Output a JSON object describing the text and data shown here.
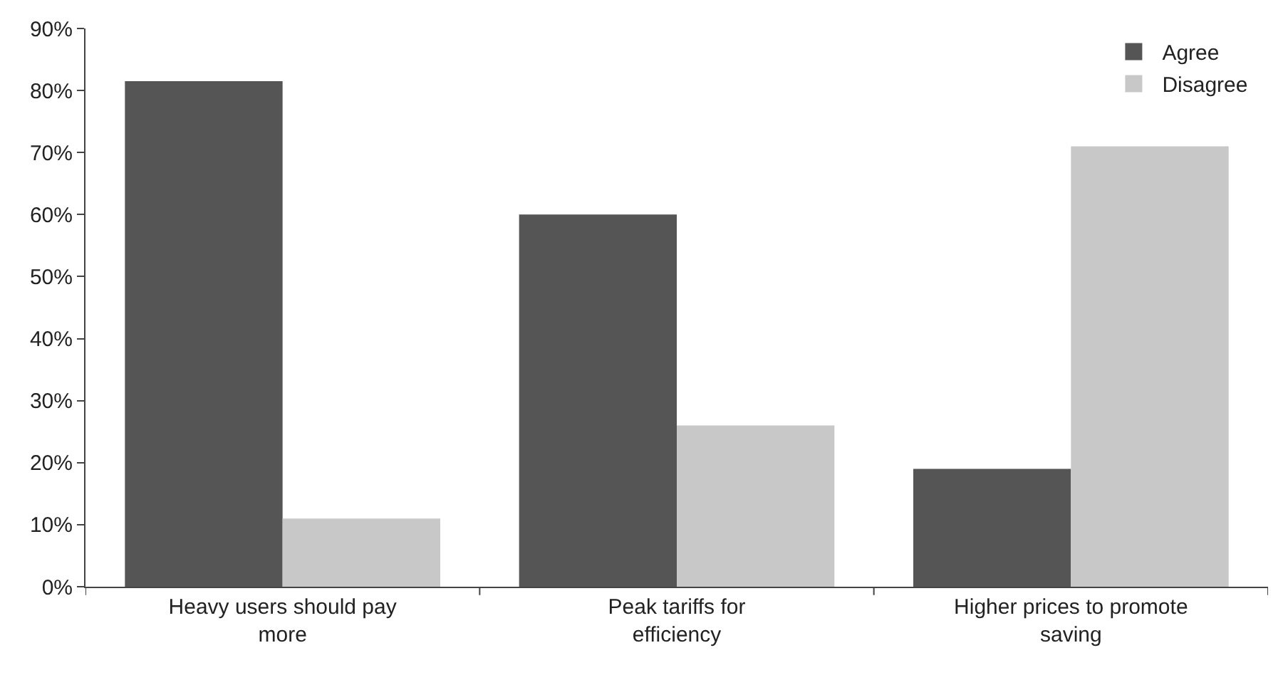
{
  "chart_data": {
    "type": "bar",
    "categories": [
      "Heavy users should pay more",
      "Peak tariffs for efficiency",
      "Higher prices to promote saving"
    ],
    "series": [
      {
        "name": "Agree",
        "color": "#555555",
        "values": [
          81.5,
          60,
          19
        ]
      },
      {
        "name": "Disagree",
        "color": "#c8c8c8",
        "values": [
          11,
          26,
          71
        ]
      }
    ],
    "ylim": [
      0,
      90
    ],
    "yticks": [
      {
        "value": 0,
        "label": "0%"
      },
      {
        "value": 10,
        "label": "10%"
      },
      {
        "value": 20,
        "label": "20%"
      },
      {
        "value": 30,
        "label": "30%"
      },
      {
        "value": 40,
        "label": "40%"
      },
      {
        "value": 50,
        "label": "50%"
      },
      {
        "value": 60,
        "label": "60%"
      },
      {
        "value": 70,
        "label": "70%"
      },
      {
        "value": 80,
        "label": "80%"
      },
      {
        "value": 90,
        "label": "90%"
      }
    ],
    "legend": "top right"
  }
}
